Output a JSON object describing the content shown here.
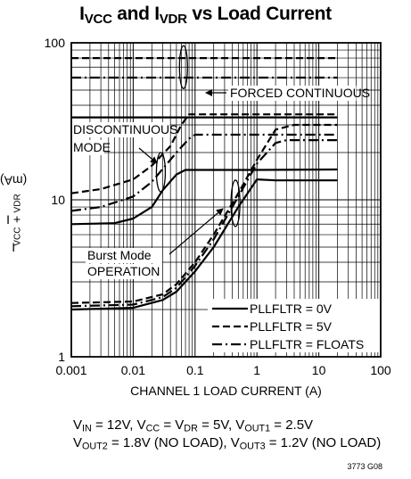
{
  "title_parts": {
    "a": "I",
    "a_sub": "VCC",
    "b": " and I",
    "b_sub": "VDR",
    "c": " vs Load Current"
  },
  "ylabel_parts": {
    "a": "I",
    "a_sub": "VCC",
    "b": " + I",
    "b_sub": "VDR",
    "c": " (mA)"
  },
  "conditions": {
    "line1": {
      "a": "V",
      "a_sub": "IN",
      "b": " = 12V, V",
      "b_sub": "CC",
      "c": " = V",
      "c_sub": "DR",
      "d": " = 5V, V",
      "d_sub": "OUT1",
      "e": " = 2.5V"
    },
    "line2": {
      "a": "V",
      "a_sub": "OUT2",
      "b": " = 1.8V (NO LOAD), V",
      "b_sub": "OUT3",
      "c": " = 1.2V (NO LOAD)"
    }
  },
  "figure_number": "3773 G08",
  "chart_data": {
    "type": "line",
    "xlabel": "CHANNEL 1 LOAD CURRENT (A)",
    "xscale": "log",
    "yscale": "log",
    "xlim": [
      0.001,
      100
    ],
    "ylim": [
      1,
      100
    ],
    "x_ticks": [
      "0.001",
      "0.01",
      "0.1",
      "1",
      "10",
      "100"
    ],
    "y_ticks": [
      "1",
      "10",
      "100"
    ],
    "grid": true,
    "legend_position": "bottom-right",
    "legend": [
      {
        "label": "PLLFLTR = 0V",
        "style": "solid"
      },
      {
        "label": "PLLFLTR = 5V",
        "style": "dashed"
      },
      {
        "label": "PLLFLTR = FLOATS",
        "style": "dashdot"
      }
    ],
    "annotations": [
      "FORCED CONTINUOUS",
      "DISCONTINUOUS",
      "MODE",
      "Burst Mode",
      "OPERATION"
    ],
    "series": [
      {
        "mode": "forced continuous",
        "style": "solid",
        "x": [
          0.001,
          20
        ],
        "y": [
          33.5,
          33.5
        ]
      },
      {
        "mode": "forced continuous",
        "style": "dashed",
        "x": [
          0.001,
          20
        ],
        "y": [
          80,
          80
        ]
      },
      {
        "mode": "forced continuous",
        "style": "dashdot",
        "x": [
          0.001,
          20
        ],
        "y": [
          60,
          60
        ]
      },
      {
        "mode": "discontinuous",
        "style": "solid",
        "x": [
          0.001,
          0.005,
          0.01,
          0.02,
          0.03,
          0.05,
          0.07,
          0.2,
          1,
          20
        ],
        "y": [
          7,
          7.1,
          7.6,
          9,
          11.5,
          14.5,
          15.5,
          15.5,
          15.5,
          15.6
        ]
      },
      {
        "mode": "discontinuous",
        "style": "dashed",
        "x": [
          0.001,
          0.003,
          0.01,
          0.02,
          0.04,
          0.06,
          0.08,
          0.2,
          1,
          20
        ],
        "y": [
          11,
          11.7,
          13.5,
          16.5,
          22,
          30,
          35,
          35,
          35,
          35
        ]
      },
      {
        "mode": "discontinuous",
        "style": "dashdot",
        "x": [
          0.001,
          0.003,
          0.01,
          0.02,
          0.05,
          0.08,
          0.1,
          1,
          20
        ],
        "y": [
          8.5,
          9,
          10.5,
          13,
          20,
          24.5,
          26,
          26,
          26
        ]
      },
      {
        "mode": "burst",
        "style": "solid",
        "x": [
          0.001,
          0.01,
          0.03,
          0.05,
          0.1,
          0.2,
          0.5,
          1,
          2,
          20
        ],
        "y": [
          2,
          2.05,
          2.3,
          2.6,
          3.5,
          5,
          9,
          13.5,
          13.3,
          13.3
        ]
      },
      {
        "mode": "burst",
        "style": "dashed",
        "x": [
          0.001,
          0.01,
          0.03,
          0.05,
          0.1,
          0.2,
          0.5,
          1,
          2,
          4,
          20
        ],
        "y": [
          2.2,
          2.25,
          2.5,
          2.9,
          4,
          6,
          11,
          18,
          28,
          30,
          30
        ]
      },
      {
        "mode": "burst",
        "style": "dashdot",
        "x": [
          0.001,
          0.01,
          0.03,
          0.05,
          0.1,
          0.2,
          0.5,
          1,
          2,
          3,
          20
        ],
        "y": [
          2.1,
          2.15,
          2.4,
          2.75,
          3.8,
          5.6,
          10.5,
          17,
          23,
          24,
          24
        ]
      }
    ]
  }
}
